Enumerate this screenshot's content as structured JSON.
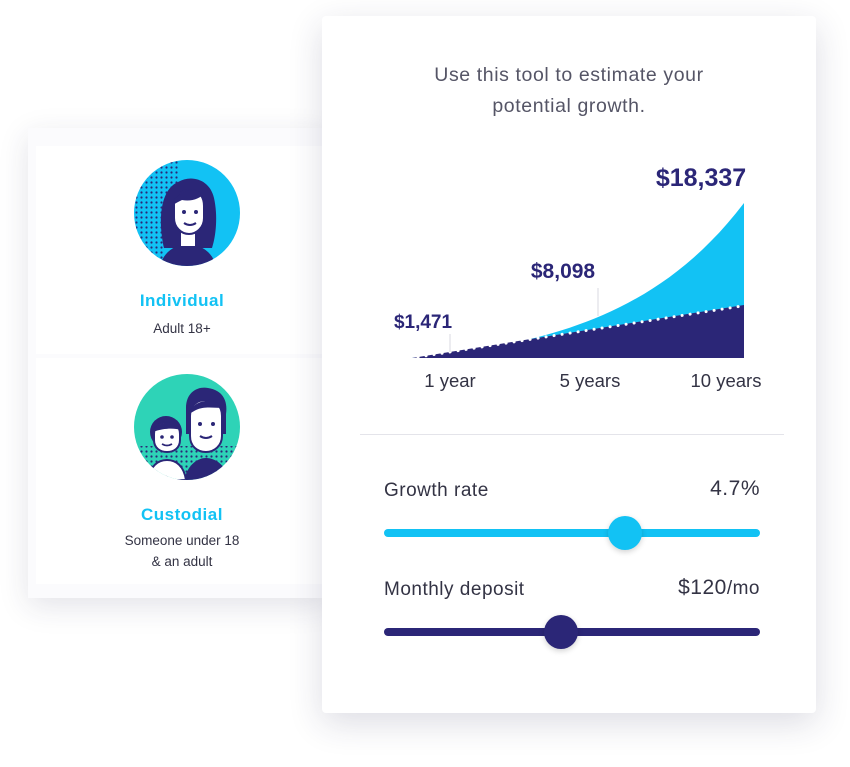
{
  "accounts": {
    "individual": {
      "title": "Individual",
      "subtitle_lines": [
        "Adult 18+"
      ]
    },
    "custodial": {
      "title": "Custodial",
      "subtitle_lines": [
        "Someone under 18",
        "& an adult"
      ]
    }
  },
  "tool": {
    "intro_lines": [
      "Use this tool to estimate your",
      "potential growth."
    ]
  },
  "chart_data": {
    "type": "area",
    "x": [
      "1 year",
      "5 years",
      "10 years"
    ],
    "value_labels": [
      "$1,471",
      "$8,098",
      "$18,337"
    ],
    "values": [
      1471,
      8098,
      18337
    ],
    "title": "",
    "xlabel": "",
    "ylabel": ""
  },
  "sliders": {
    "growth": {
      "label": "Growth rate",
      "value": "4.7%",
      "fraction": 0.64
    },
    "deposit": {
      "label": "Monthly deposit",
      "value": "$120",
      "unit": "/mo",
      "fraction": 0.47
    }
  },
  "colors": {
    "cyan": "#12c2f4",
    "navy": "#2b2677",
    "teal": "#2ed3b7"
  }
}
